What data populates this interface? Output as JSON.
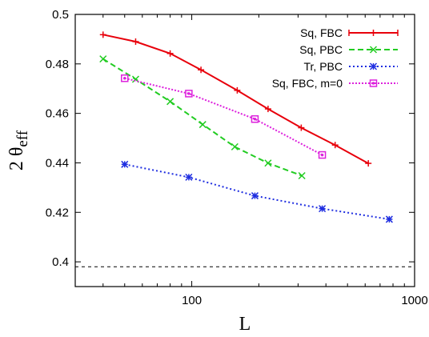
{
  "chart_data": {
    "type": "line",
    "xscale": "log",
    "xlim": [
      30,
      1000
    ],
    "ylim": [
      0.39,
      0.5
    ],
    "xticks": [
      100,
      1000
    ],
    "xtick_labels": [
      "100",
      "1000"
    ],
    "yticks": [
      0.4,
      0.42,
      0.44,
      0.46,
      0.48,
      0.5
    ],
    "ytick_labels": [
      "0.4",
      "0.42",
      "0.44",
      "0.46",
      "0.48",
      "0.5"
    ],
    "xlabel": "L",
    "ylabel": {
      "base": "2 θ",
      "sub": "eff"
    },
    "reference_line": {
      "y": 0.398,
      "style": "dashed",
      "color": "#000000"
    },
    "legend": {
      "placement": "top-right"
    },
    "series": [
      {
        "name": "Sq, FBC",
        "color": "#e8000b",
        "dash": "",
        "marker": "plus",
        "x": [
          40,
          56,
          80,
          110,
          160,
          220,
          310,
          440,
          620
        ],
        "y": [
          0.4918,
          0.489,
          0.4842,
          0.4776,
          0.4693,
          0.4618,
          0.4542,
          0.4472,
          0.4398
        ]
      },
      {
        "name": "Sq, PBC",
        "color": "#22cc22",
        "dash": "7,4",
        "marker": "cross",
        "x": [
          40,
          56,
          80,
          112,
          156,
          220,
          312
        ],
        "y": [
          0.482,
          0.4738,
          0.4648,
          0.4555,
          0.4465,
          0.4399,
          0.4348
        ]
      },
      {
        "name": "Tr, PBC",
        "color": "#1f2ee0",
        "dash": "2,3",
        "marker": "star",
        "x": [
          50,
          97,
          192,
          385,
          770
        ],
        "y": [
          0.4394,
          0.4342,
          0.4267,
          0.4215,
          0.4172
        ]
      },
      {
        "name": "Sq, FBC, m=0",
        "color": "#dd22dd",
        "dash": "2,2",
        "marker": "boxdot",
        "x": [
          50,
          97,
          192,
          385
        ],
        "y": [
          0.4742,
          0.468,
          0.4577,
          0.4432
        ]
      }
    ]
  }
}
